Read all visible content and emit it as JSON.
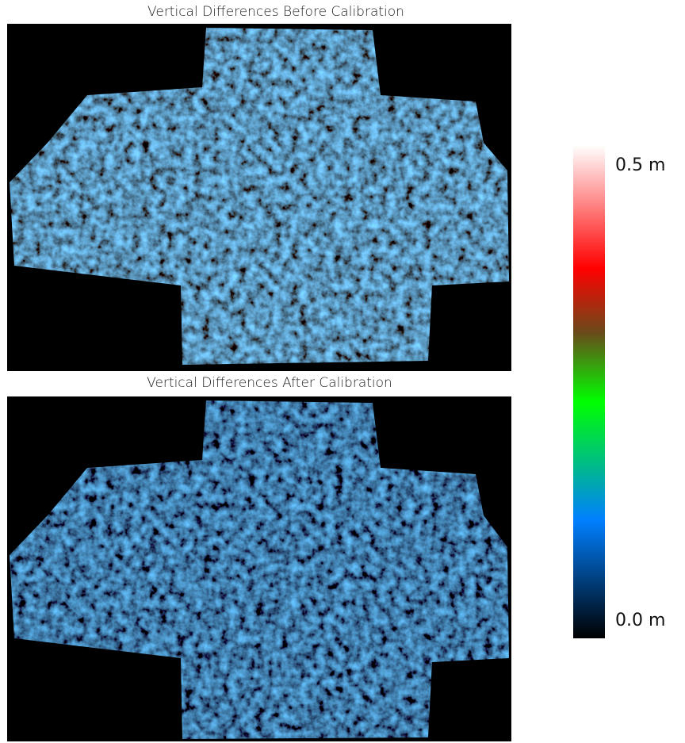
{
  "panels": [
    {
      "title": "Vertical Differences Before Calibration"
    },
    {
      "title": "Vertical Differences After Calibration"
    }
  ],
  "colorbar": {
    "max_label": "0.5 m",
    "min_label": "0.0 m"
  }
}
